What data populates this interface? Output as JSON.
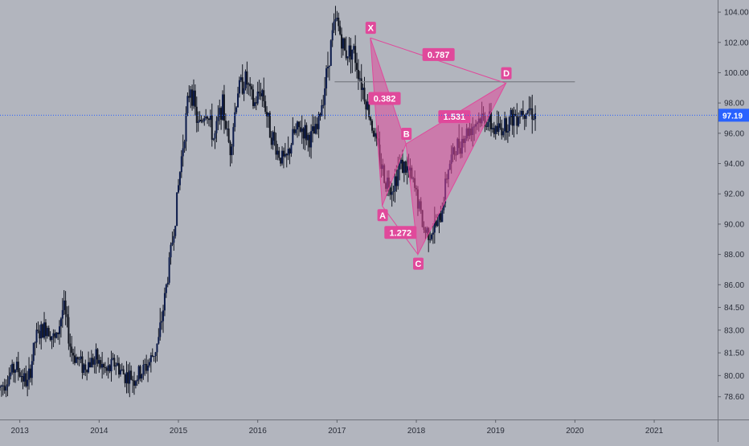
{
  "chart_data": {
    "type": "candlestick",
    "y_axis_side": "right",
    "ylim": [
      77.1,
      104.8
    ],
    "xlim": [
      2012.75,
      2021.8
    ],
    "y_ticks": [
      {
        "value": 104.0,
        "label": "104.00"
      },
      {
        "value": 102.0,
        "label": "102.00"
      },
      {
        "value": 100.0,
        "label": "100.00"
      },
      {
        "value": 98.0,
        "label": "98.00"
      },
      {
        "value": 96.0,
        "label": "96.00"
      },
      {
        "value": 94.0,
        "label": "94.00"
      },
      {
        "value": 92.0,
        "label": "92.00"
      },
      {
        "value": 90.0,
        "label": "90.00"
      },
      {
        "value": 88.0,
        "label": "88.00"
      },
      {
        "value": 86.0,
        "label": "86.00"
      },
      {
        "value": 84.5,
        "label": "84.50"
      },
      {
        "value": 83.0,
        "label": "83.00"
      },
      {
        "value": 81.5,
        "label": "81.50"
      },
      {
        "value": 80.0,
        "label": "80.00"
      },
      {
        "value": 78.6,
        "label": "78.60"
      }
    ],
    "x_ticks": [
      {
        "value": 2013,
        "label": "2013"
      },
      {
        "value": 2014,
        "label": "2014"
      },
      {
        "value": 2015,
        "label": "2015"
      },
      {
        "value": 2016,
        "label": "2016"
      },
      {
        "value": 2017,
        "label": "2017"
      },
      {
        "value": 2018,
        "label": "2018"
      },
      {
        "value": 2019,
        "label": "2019"
      },
      {
        "value": 2020,
        "label": "2020"
      },
      {
        "value": 2021,
        "label": "2021"
      }
    ],
    "price_line": {
      "value": 97.19,
      "label": "97.19",
      "color": "#2962ff"
    },
    "price_path": [
      [
        2012.75,
        79.2
      ],
      [
        2012.95,
        80.6
      ],
      [
        2013.1,
        79.4
      ],
      [
        2013.2,
        82.5
      ],
      [
        2013.35,
        83.3
      ],
      [
        2013.45,
        82.2
      ],
      [
        2013.55,
        84.6
      ],
      [
        2013.65,
        81.6
      ],
      [
        2013.8,
        80.6
      ],
      [
        2013.95,
        81.1
      ],
      [
        2014.1,
        80.2
      ],
      [
        2014.2,
        80.9
      ],
      [
        2014.3,
        80.1
      ],
      [
        2014.45,
        79.8
      ],
      [
        2014.55,
        80.3
      ],
      [
        2014.65,
        81.0
      ],
      [
        2014.75,
        82.3
      ],
      [
        2014.85,
        86.0
      ],
      [
        2014.95,
        90.0
      ],
      [
        2015.05,
        95.0
      ],
      [
        2015.15,
        99.3
      ],
      [
        2015.25,
        96.4
      ],
      [
        2015.35,
        97.6
      ],
      [
        2015.45,
        95.5
      ],
      [
        2015.55,
        98.0
      ],
      [
        2015.65,
        94.9
      ],
      [
        2015.75,
        98.9
      ],
      [
        2015.85,
        99.6
      ],
      [
        2015.95,
        97.8
      ],
      [
        2016.05,
        99.0
      ],
      [
        2016.15,
        96.3
      ],
      [
        2016.25,
        94.8
      ],
      [
        2016.35,
        94.0
      ],
      [
        2016.45,
        95.9
      ],
      [
        2016.55,
        96.4
      ],
      [
        2016.65,
        95.6
      ],
      [
        2016.75,
        96.2
      ],
      [
        2016.85,
        99.3
      ],
      [
        2016.95,
        102.8
      ],
      [
        2017.0,
        103.4
      ],
      [
        2017.1,
        101.3
      ],
      [
        2017.2,
        101.6
      ],
      [
        2017.3,
        99.5
      ],
      [
        2017.4,
        97.5
      ],
      [
        2017.5,
        95.2
      ],
      [
        2017.6,
        93.0
      ],
      [
        2017.7,
        92.5
      ],
      [
        2017.8,
        94.0
      ],
      [
        2017.9,
        93.5
      ],
      [
        2018.0,
        92.0
      ],
      [
        2018.1,
        89.5
      ],
      [
        2018.2,
        89.6
      ],
      [
        2018.3,
        90.2
      ],
      [
        2018.4,
        93.8
      ],
      [
        2018.5,
        95.0
      ],
      [
        2018.6,
        95.8
      ],
      [
        2018.7,
        96.5
      ],
      [
        2018.8,
        97.0
      ],
      [
        2018.9,
        96.9
      ],
      [
        2019.0,
        96.1
      ],
      [
        2019.1,
        96.5
      ],
      [
        2019.2,
        97.0
      ],
      [
        2019.3,
        97.4
      ],
      [
        2019.4,
        97.8
      ],
      [
        2019.5,
        97.19
      ]
    ],
    "harmonic_pattern": {
      "color": "#e0499b",
      "points": [
        {
          "label": "X",
          "x": 2017.42,
          "y": 102.3
        },
        {
          "label": "A",
          "x": 2017.57,
          "y": 91.2
        },
        {
          "label": "B",
          "x": 2017.87,
          "y": 95.3
        },
        {
          "label": "C",
          "x": 2018.02,
          "y": 88.0
        },
        {
          "label": "D",
          "x": 2019.13,
          "y": 99.3
        }
      ],
      "ratios": [
        {
          "label": "0.382",
          "x": 2017.6,
          "y": 98.3
        },
        {
          "label": "0.787",
          "x": 2018.28,
          "y": 101.2
        },
        {
          "label": "1.272",
          "x": 2017.8,
          "y": 89.45
        },
        {
          "label": "1.531",
          "x": 2018.48,
          "y": 97.1
        }
      ]
    },
    "horizontal_line": {
      "value": 99.4,
      "x_start": 2016.97,
      "x_end": 2020.0
    }
  }
}
